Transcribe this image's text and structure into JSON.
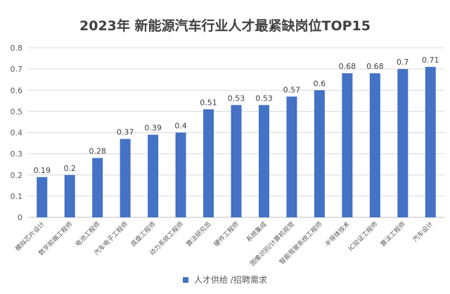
{
  "chart_data": {
    "type": "bar",
    "title": "2023年 新能源汽车行业人才最紧缺岗位TOP15",
    "categories": [
      "模拟芯片设计",
      "数字前端工程师",
      "电池工程师",
      "汽车电子工程师",
      "底盘工程师",
      "动力系统工程师",
      "算法研究员",
      "硬件工程师",
      "系统集成",
      "图像识别/计算机视觉",
      "智能驾驶系统工程师",
      "半导体技术",
      "IC验证工程师",
      "算法工程师",
      "汽车设计"
    ],
    "series": [
      {
        "name": "人才供给 /招聘需求",
        "values": [
          0.19,
          0.2,
          0.28,
          0.37,
          0.39,
          0.4,
          0.51,
          0.53,
          0.53,
          0.57,
          0.6,
          0.68,
          0.68,
          0.7,
          0.71
        ]
      }
    ],
    "value_labels": [
      "0.19",
      "0.2",
      "0.28",
      "0.37",
      "0.39",
      "0.4",
      "0.51",
      "0.53",
      "0.53",
      "0.57",
      "0.6",
      "0.68",
      "0.68",
      "0.7",
      "0.71"
    ],
    "ylim": [
      0,
      0.8
    ],
    "yticks": [
      "0",
      "0.1",
      "0.2",
      "0.3",
      "0.4",
      "0.5",
      "0.6",
      "0.7",
      "0.8"
    ],
    "xlabel": "",
    "ylabel": "",
    "grid": true,
    "legend_position": "bottom",
    "bar_color": "#4472c4"
  }
}
